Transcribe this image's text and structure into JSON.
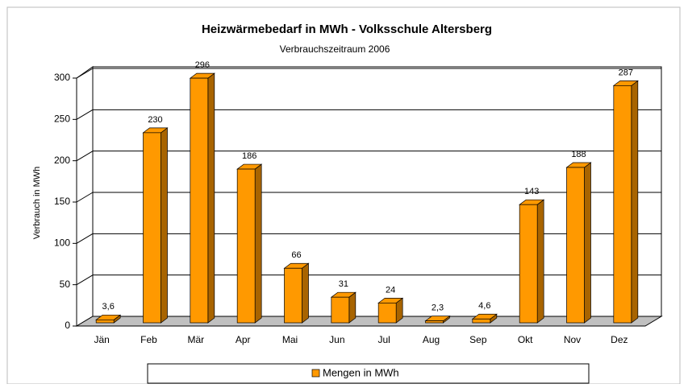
{
  "chart_data": {
    "type": "bar3d",
    "title": "Heizwärmebedarf in MWh - Volksschule Altersberg",
    "subtitle": "Verbrauchszeitraum 2006",
    "y_label": "Verbrauch in MWh",
    "categories": [
      "Jän",
      "Feb",
      "Mär",
      "Apr",
      "Mai",
      "Jun",
      "Jul",
      "Aug",
      "Sep",
      "Okt",
      "Nov",
      "Dez"
    ],
    "series": [
      {
        "name": "Mengen in MWh",
        "color": "#ff9900",
        "values": [
          3.6,
          230,
          296,
          186,
          66,
          31,
          24,
          2.3,
          4.6,
          143,
          188,
          287
        ],
        "value_labels": [
          "3,6",
          "230",
          "296",
          "186",
          "66",
          "31",
          "24",
          "2,3",
          "4,6",
          "143",
          "188",
          "287"
        ]
      }
    ],
    "ylim": [
      0,
      300
    ],
    "yticks": [
      0,
      50,
      100,
      150,
      200,
      250,
      300
    ],
    "grid": true,
    "legend": "bottom"
  }
}
